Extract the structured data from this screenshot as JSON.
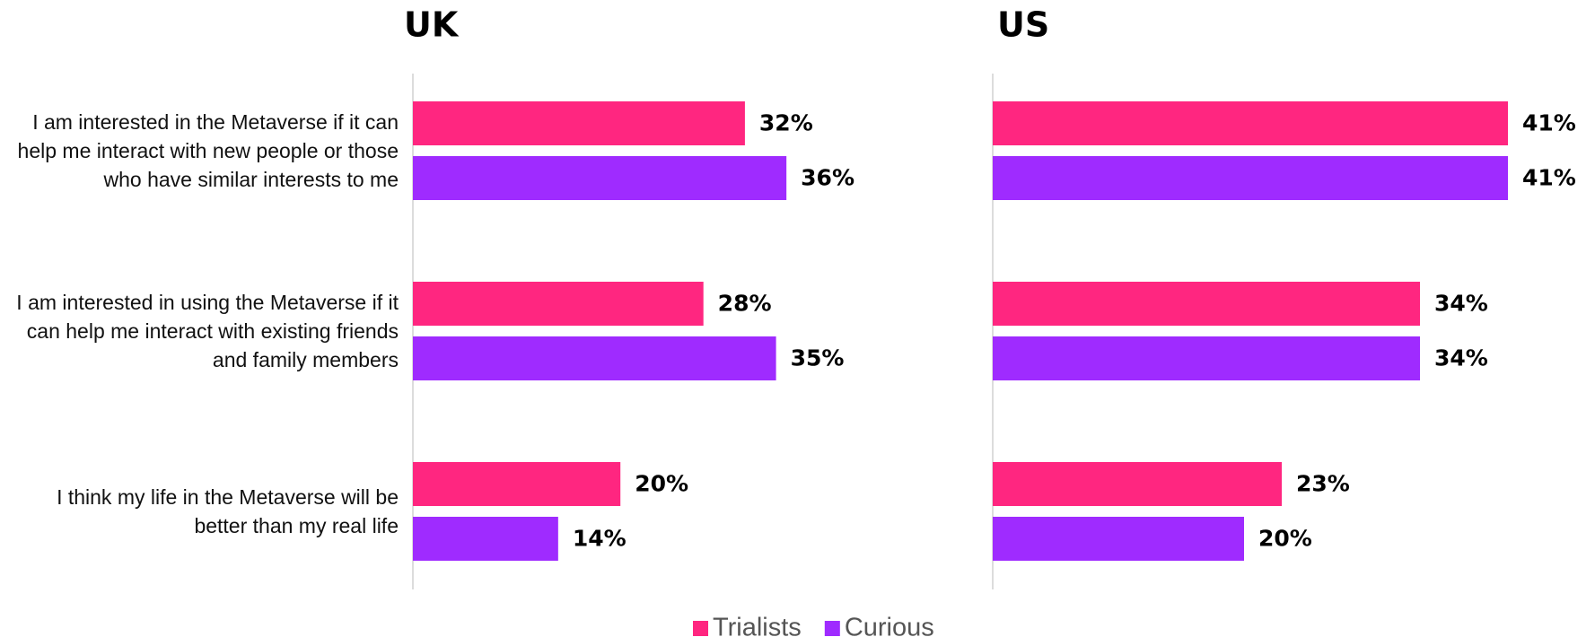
{
  "chart_data": [
    {
      "type": "barh",
      "title": "UK",
      "categories": [
        "I am interested in the Metaverse if it can help me interact with new people or those who have similar interests to me",
        "I am interested in using the Metaverse if it can help me interact with existing friends and family members",
        "I think my life in the Metaverse will be better than my real life"
      ],
      "series": [
        {
          "name": "Trialists",
          "color": "#ff2680",
          "values": [
            32,
            28,
            20
          ],
          "value_labels": [
            "32%",
            "28%",
            "20%"
          ]
        },
        {
          "name": "Curious",
          "color": "#9f2bff",
          "values": [
            36,
            35,
            14
          ],
          "value_labels": [
            "36%",
            "35%",
            "14%"
          ]
        }
      ],
      "xlim": [
        0,
        50
      ]
    },
    {
      "type": "barh",
      "title": "US",
      "series": [
        {
          "color": "#ff2680",
          "values": [
            41,
            34,
            23
          ],
          "value_labels": [
            "41%",
            "34%",
            "23%"
          ]
        },
        {
          "color": "#9f2bff",
          "values": [
            41,
            34,
            20
          ],
          "value_labels": [
            "41%",
            "34%",
            "20%"
          ]
        }
      ],
      "xlim": [
        0,
        50
      ]
    }
  ]
}
